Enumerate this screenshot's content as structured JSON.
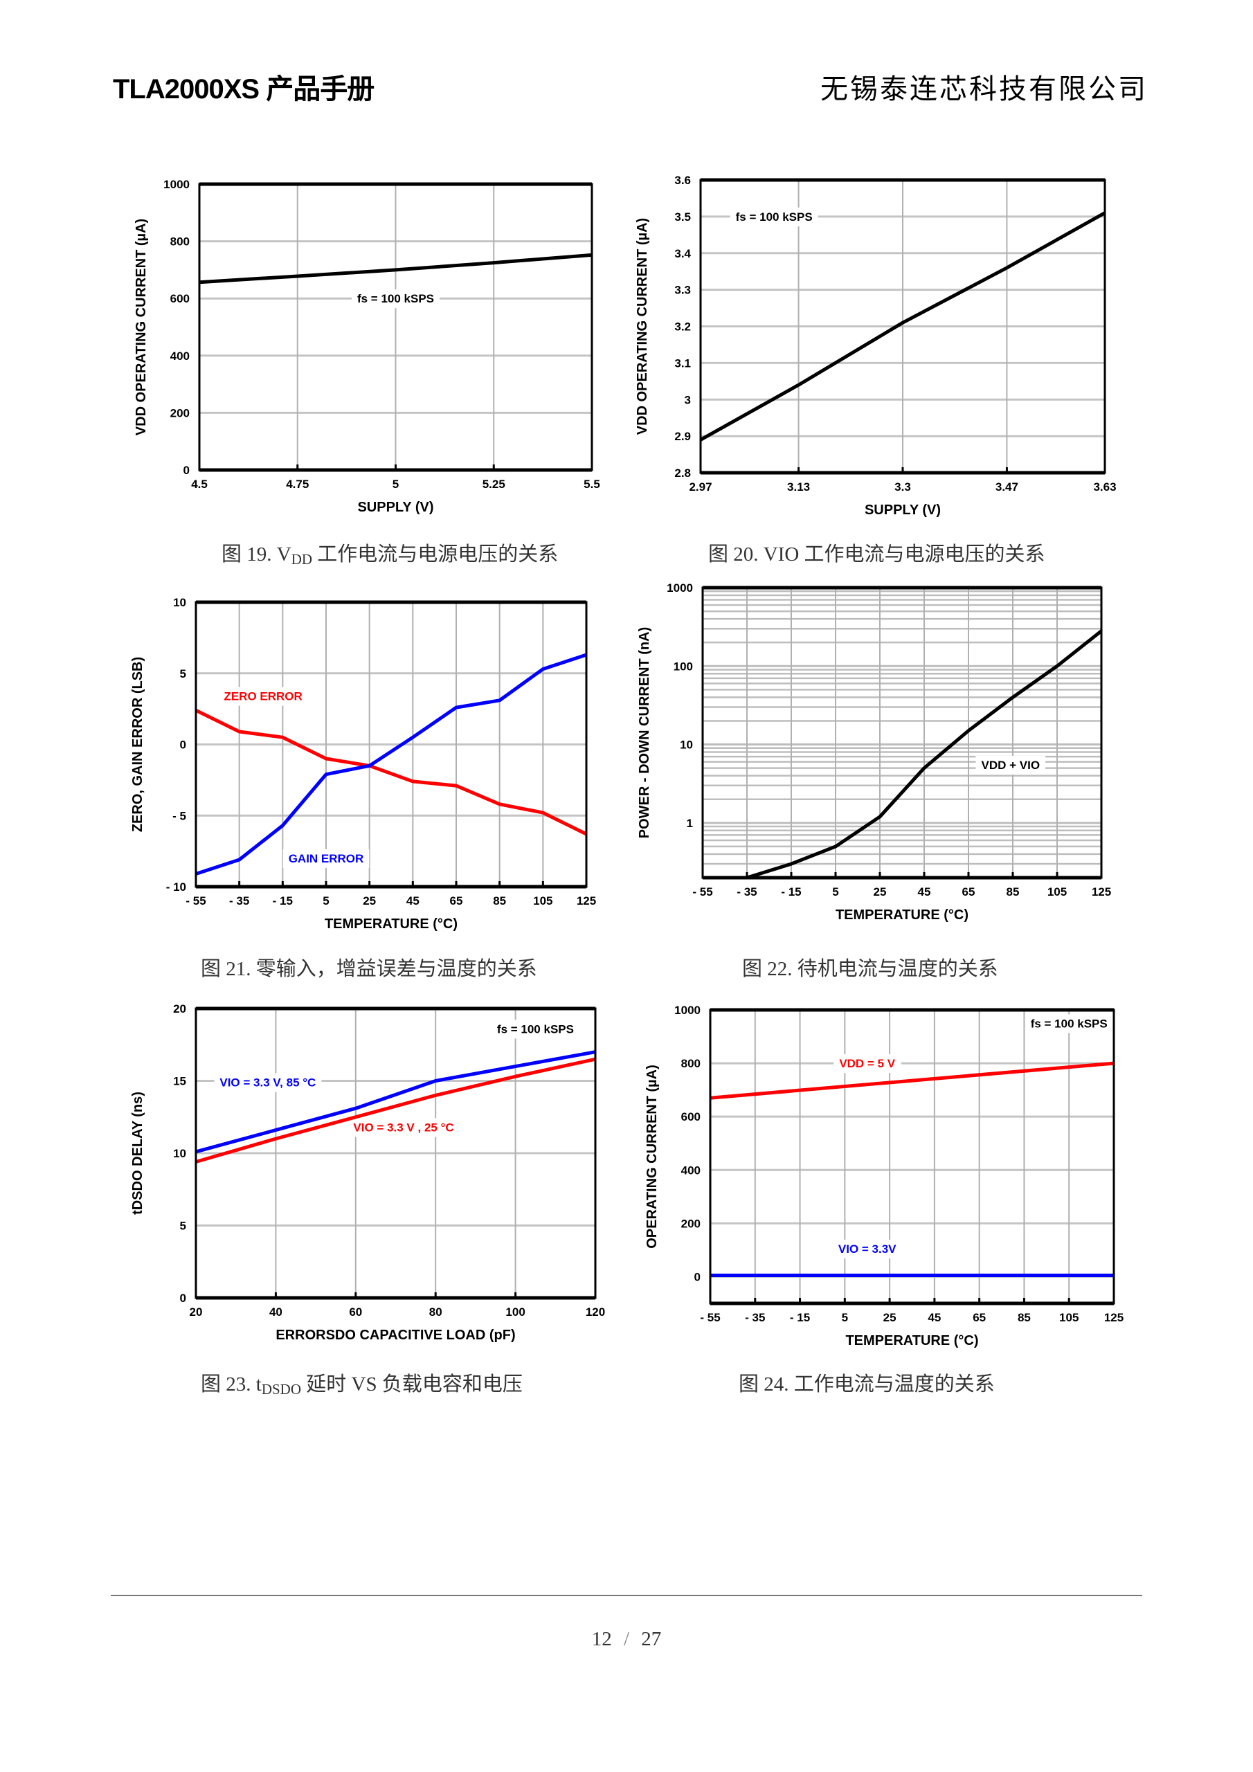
{
  "header": {
    "left": "TLA2000XS 产品手册",
    "right": "无锡泰连芯科技有限公司"
  },
  "footer": {
    "page": "12",
    "separator": "/",
    "total": "27"
  },
  "captions": [
    {
      "pre": "图 19. V",
      "sub": "DD",
      "post": " 工作电流与电源电压的关系"
    },
    {
      "pre": "图 20. VIO  工作电流与电源电压的关系",
      "sub": "",
      "post": ""
    },
    {
      "pre": "图 21.  零输入，增益误差与温度的关系",
      "sub": "",
      "post": ""
    },
    {
      "pre": "图 22.  待机电流与温度的关系",
      "sub": "",
      "post": ""
    },
    {
      "pre": "图 23. t",
      "sub": "DSDO",
      "post": "  延时  VS  负载电容和电压"
    },
    {
      "pre": "图 24.  工作电流与温度的关系",
      "sub": "",
      "post": ""
    }
  ],
  "chart_data": [
    {
      "type": "line",
      "title": "",
      "xlabel": "SUPPLY (V)",
      "ylabel": "VDD OPERATING CURRENT (µA)",
      "xlim": [
        4.5,
        5.5
      ],
      "ylim": [
        0,
        1000
      ],
      "xticks": [
        4.5,
        4.75,
        5,
        5.25,
        5.5
      ],
      "xticklabels": [
        "4.5",
        "4.75",
        "5",
        "5.25",
        "5.5"
      ],
      "yticks": [
        0,
        200,
        400,
        600,
        800,
        1000
      ],
      "yticklabels": [
        "0",
        "200",
        "400",
        "600",
        "800",
        "1000"
      ],
      "grid": true,
      "yscale": "linear",
      "series": [
        {
          "name": "VDD",
          "color": "#000000",
          "x": [
            4.5,
            4.75,
            5,
            5.25,
            5.5
          ],
          "y": [
            657,
            678,
            700,
            725,
            752
          ]
        }
      ],
      "annotations": [
        {
          "text": "fs = 100 kSPS",
          "x": 5.0,
          "y": 600,
          "color": "#000000"
        }
      ]
    },
    {
      "type": "line",
      "title": "",
      "xlabel": "SUPPLY (V)",
      "ylabel": "VDD OPERATING CURRENT (µA)",
      "xlim": [
        2.97,
        3.63
      ],
      "ylim": [
        2.8,
        3.6
      ],
      "xticks": [
        2.97,
        3.13,
        3.3,
        3.47,
        3.63
      ],
      "xticklabels": [
        "2.97",
        "3.13",
        "3.3",
        "3.47",
        "3.63"
      ],
      "yticks": [
        2.8,
        2.9,
        3,
        3.1,
        3.2,
        3.3,
        3.4,
        3.5,
        3.6
      ],
      "yticklabels": [
        "2.8",
        "2.9",
        "3",
        "3.1",
        "3.2",
        "3.3",
        "3.4",
        "3.5",
        "3.6"
      ],
      "grid": true,
      "yscale": "linear",
      "series": [
        {
          "name": "VIO",
          "color": "#000000",
          "x": [
            2.97,
            3.13,
            3.3,
            3.47,
            3.63
          ],
          "y": [
            2.89,
            3.04,
            3.21,
            3.36,
            3.51
          ]
        }
      ],
      "annotations": [
        {
          "text": "fs = 100 kSPS",
          "x": 3.09,
          "y": 3.5,
          "color": "#000000"
        }
      ]
    },
    {
      "type": "line",
      "title": "",
      "xlabel": "TEMPERATURE (°C)",
      "ylabel": "ZERO, GAIN ERROR (LSB)",
      "xlim": [
        -55,
        125
      ],
      "ylim": [
        -10,
        10
      ],
      "xticks": [
        -55,
        -35,
        -15,
        5,
        25,
        45,
        65,
        85,
        105,
        125
      ],
      "xticklabels": [
        "- 55",
        "- 35",
        "- 15",
        "5",
        "25",
        "45",
        "65",
        "85",
        "105",
        "125"
      ],
      "yticks": [
        -10,
        -5,
        0,
        5,
        10
      ],
      "yticklabels": [
        "- 10",
        "- 5",
        "0",
        "5",
        "10"
      ],
      "grid": true,
      "yscale": "linear",
      "series": [
        {
          "name": "ZERO ERROR",
          "color": "#ff0000",
          "x": [
            -55,
            -35,
            -15,
            5,
            25,
            45,
            65,
            85,
            105,
            125
          ],
          "y": [
            2.4,
            0.9,
            0.5,
            -1.0,
            -1.5,
            -2.6,
            -2.9,
            -4.2,
            -4.8,
            -6.3
          ]
        },
        {
          "name": "GAIN ERROR",
          "color": "#0000ff",
          "x": [
            -55,
            -35,
            -15,
            5,
            25,
            45,
            65,
            85,
            105,
            125
          ],
          "y": [
            -9.1,
            -8.1,
            -5.7,
            -2.1,
            -1.5,
            0.5,
            2.6,
            3.1,
            5.3,
            6.3
          ]
        }
      ],
      "annotations": [
        {
          "text": "ZERO ERROR",
          "x": -24,
          "y": 3.4,
          "color": "#ff0000"
        },
        {
          "text": "GAIN ERROR",
          "x": 5,
          "y": -8.0,
          "color": "#0000ff"
        }
      ]
    },
    {
      "type": "line",
      "title": "",
      "xlabel": "TEMPERATURE (°C)",
      "ylabel": "POWER - DOWN CURRENT (nA)",
      "xlim": [
        -55,
        125
      ],
      "ylim": [
        0.2,
        1000
      ],
      "xticks": [
        -55,
        -35,
        -15,
        5,
        25,
        45,
        65,
        85,
        105,
        125
      ],
      "xticklabels": [
        "- 55",
        "- 35",
        "- 15",
        "5",
        "25",
        "45",
        "65",
        "85",
        "105",
        "125"
      ],
      "yticks": [
        1,
        10,
        100,
        1000
      ],
      "yticklabels": [
        "1",
        "10",
        "100",
        "1000"
      ],
      "grid": true,
      "yscale": "log",
      "series": [
        {
          "name": "VDD + VIO",
          "color": "#000000",
          "x": [
            -55,
            -35,
            -15,
            5,
            25,
            45,
            65,
            85,
            105,
            125
          ],
          "y": [
            0.2,
            0.2,
            0.3,
            0.5,
            1.2,
            5,
            15,
            40,
            100,
            280
          ]
        }
      ],
      "annotations": [
        {
          "text": "VDD + VIO",
          "x": 84,
          "y": 5.5,
          "color": "#000000"
        }
      ]
    },
    {
      "type": "line",
      "title": "",
      "xlabel": "ERRORSDO CAPACITIVE LOAD (pF)",
      "ylabel": "tDSDO DELAY (ns)",
      "xlim": [
        20,
        120
      ],
      "ylim": [
        0,
        20
      ],
      "xticks": [
        20,
        40,
        60,
        80,
        100,
        120
      ],
      "xticklabels": [
        "20",
        "40",
        "60",
        "80",
        "100",
        "120"
      ],
      "yticks": [
        0,
        5,
        10,
        15,
        20
      ],
      "yticklabels": [
        "0",
        "5",
        "10",
        "15",
        "20"
      ],
      "grid": true,
      "yscale": "linear",
      "series": [
        {
          "name": "VIO = 3.3 V, 85 °C",
          "color": "#0000ff",
          "x": [
            20,
            40,
            60,
            80,
            100,
            120
          ],
          "y": [
            10.1,
            11.6,
            13.1,
            15.0,
            16.0,
            17.0
          ]
        },
        {
          "name": "VIO = 3.3 V , 25 °C",
          "color": "#ff0000",
          "x": [
            20,
            40,
            60,
            80,
            100,
            120
          ],
          "y": [
            9.4,
            11.0,
            12.5,
            14.0,
            15.3,
            16.5
          ]
        }
      ],
      "annotations": [
        {
          "text": "fs = 100 kSPS",
          "x": 105,
          "y": 18.6,
          "color": "#000000"
        },
        {
          "text": "VIO = 3.3 V, 85 °C",
          "x": 38,
          "y": 14.9,
          "color": "#0000ff"
        },
        {
          "text": "VIO = 3.3 V , 25 °C",
          "x": 72,
          "y": 11.8,
          "color": "#ff0000"
        }
      ]
    },
    {
      "type": "line",
      "title": "",
      "xlabel": "TEMPERATURE (°C)",
      "ylabel": "OPERATING CURRENT (µA)",
      "xlim": [
        -55,
        125
      ],
      "ylim": [
        -100,
        1000
      ],
      "xticks": [
        -55,
        -35,
        -15,
        5,
        25,
        45,
        65,
        85,
        105,
        125
      ],
      "xticklabels": [
        "- 55",
        "- 35",
        "- 15",
        "5",
        "25",
        "45",
        "65",
        "85",
        "105",
        "125"
      ],
      "yticks": [
        0,
        200,
        400,
        600,
        800,
        1000
      ],
      "yticklabels": [
        "0",
        "200",
        "400",
        "600",
        "800",
        "1000"
      ],
      "grid": true,
      "yscale": "linear",
      "series": [
        {
          "name": "VDD = 5 V",
          "color": "#ff0000",
          "x": [
            -55,
            125
          ],
          "y": [
            670,
            800
          ]
        },
        {
          "name": "VIO = 3.3V",
          "color": "#0000ff",
          "x": [
            -55,
            125
          ],
          "y": [
            5,
            5
          ]
        }
      ],
      "annotations": [
        {
          "text": "fs = 100 kSPS",
          "x": 105,
          "y": 950,
          "color": "#000000"
        },
        {
          "text": "VDD = 5 V",
          "x": 15,
          "y": 800,
          "color": "#ff0000"
        },
        {
          "text": "VIO = 3.3V",
          "x": 15,
          "y": 105,
          "color": "#0000ff"
        }
      ]
    }
  ]
}
